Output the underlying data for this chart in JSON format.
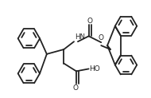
{
  "bg_color": "#ffffff",
  "line_color": "#222222",
  "line_width": 1.3,
  "figsize": [
    1.9,
    1.23
  ],
  "dpi": 100,
  "xlim": [
    0,
    190
  ],
  "ylim": [
    0,
    123
  ]
}
